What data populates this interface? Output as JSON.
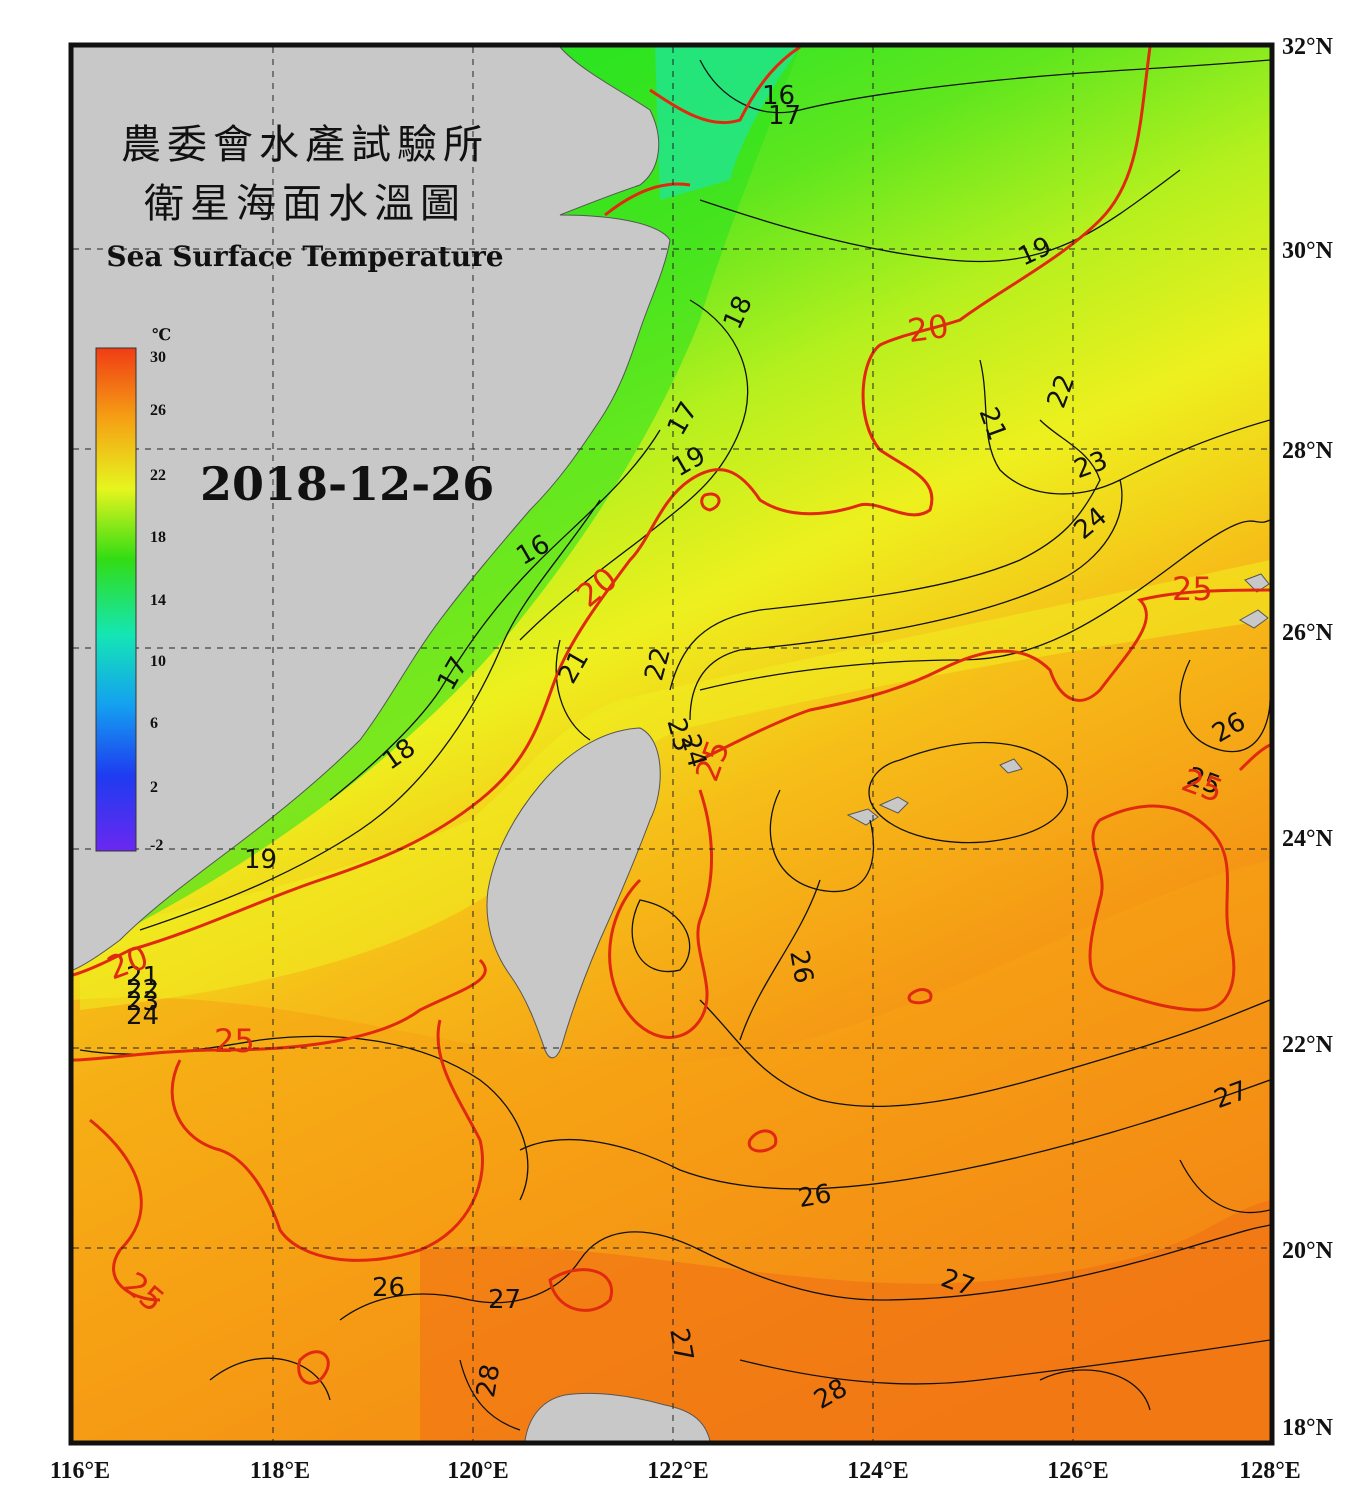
{
  "title": {
    "line1": "農委會水產試驗所",
    "line2": "衛星海面水溫圖",
    "english": "Sea Surface Temperature"
  },
  "date": "2018-12-26",
  "colorbar": {
    "unit": "℃",
    "ticks": [
      "30",
      "26",
      "22",
      "18",
      "14",
      "10",
      "6",
      "2",
      "-2"
    ],
    "colors": [
      "#f03c14",
      "#f5a014",
      "#e6f51e",
      "#32dc14",
      "#14e6b4",
      "#14a0f0",
      "#1e3cf0",
      "#6a28f0"
    ]
  },
  "axes": {
    "lon_labels": [
      "116°E",
      "118°E",
      "120°E",
      "122°E",
      "124°E",
      "126°E",
      "128°E"
    ],
    "lat_labels": [
      "32°N",
      "30°N",
      "28°N",
      "26°N",
      "24°N",
      "22°N",
      "20°N",
      "18°N"
    ]
  },
  "contour_labels_black": [
    "16",
    "17",
    "19",
    "18",
    "17",
    "19",
    "21",
    "22",
    "23",
    "24",
    "16",
    "17",
    "21",
    "22",
    "23",
    "24",
    "18",
    "19",
    "21",
    "22",
    "23",
    "24",
    "26",
    "25",
    "26",
    "27",
    "26",
    "27",
    "26",
    "27",
    "28",
    "27",
    "28"
  ],
  "contour_labels_red": [
    "20",
    "20",
    "25",
    "25",
    "25",
    "20",
    "25",
    "25"
  ]
}
